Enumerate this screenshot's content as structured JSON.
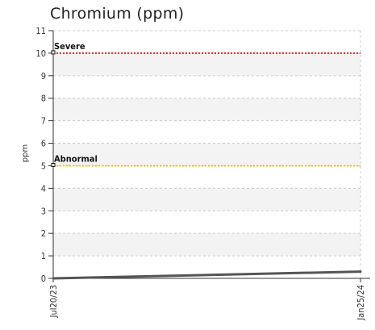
{
  "chart_data": {
    "type": "line",
    "title": "Chromium (ppm)",
    "ylabel": "ppm",
    "xlabel": "",
    "ylim": [
      0,
      11
    ],
    "yticks": [
      "0",
      "1",
      "2",
      "3",
      "4",
      "5",
      "6",
      "7",
      "8",
      "9",
      "10",
      "11"
    ],
    "x": [
      "Jul20/23",
      "Jan25/24"
    ],
    "series": [
      {
        "values": [
          0,
          0.3
        ],
        "color": "#555555"
      }
    ],
    "thresholds": [
      {
        "label": "Severe",
        "value": 10,
        "color": "#e8201a"
      },
      {
        "label": "Abnormal",
        "value": 5,
        "color": "#e8c21a"
      }
    ],
    "grid": true,
    "legend": "none"
  }
}
